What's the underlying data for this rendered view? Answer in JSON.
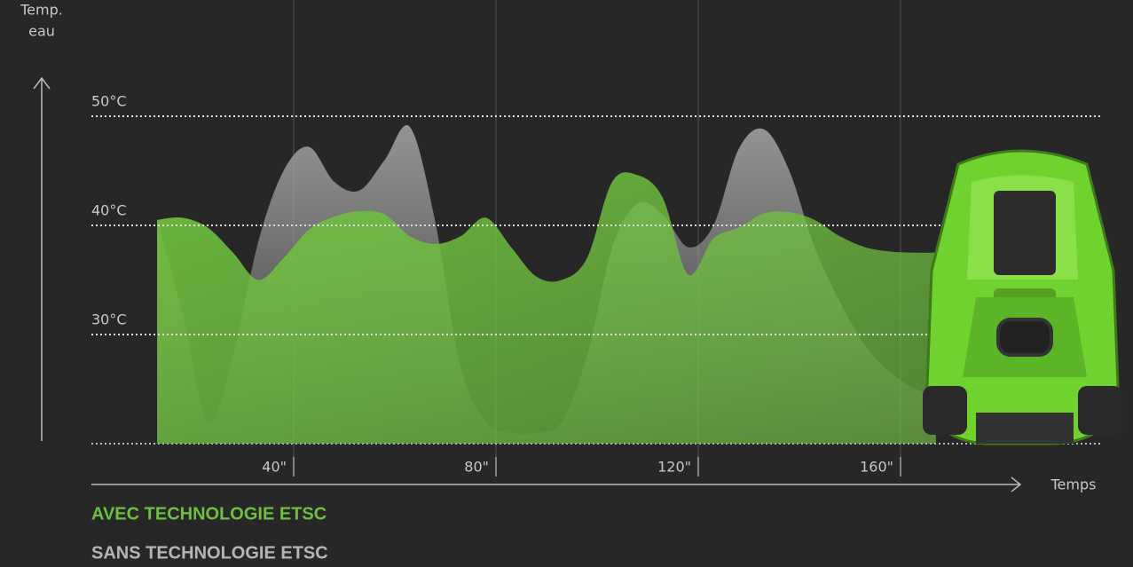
{
  "chart_data": {
    "type": "area",
    "y_label_lines": [
      "Temp.",
      "eau"
    ],
    "x_label": "Temps",
    "x": [
      13,
      18,
      23,
      28,
      33,
      38,
      43,
      48,
      53,
      58,
      63,
      68,
      73,
      78,
      83,
      88,
      93,
      98,
      103,
      108,
      113,
      118,
      123,
      128,
      133,
      138,
      143,
      148,
      153,
      158,
      163,
      167
    ],
    "series": [
      {
        "name": "SANS TECHNOLOGIE ETSC",
        "color": "#9a9a9a",
        "values": [
          40.5,
          32,
          22,
          28,
          38.5,
          45,
          47.2,
          44,
          43.2,
          46,
          49,
          40.3,
          27,
          22,
          21,
          21,
          22,
          28,
          38,
          42,
          41,
          38,
          40,
          47,
          48.8,
          45,
          38,
          33,
          29,
          26.5,
          25,
          24.5
        ]
      },
      {
        "name": "AVEC TECHNOLOGIE ETSC",
        "color": "#6fbf3f",
        "values": [
          40.5,
          40.7,
          39.8,
          37.5,
          35,
          37,
          39.6,
          40.8,
          41.3,
          41,
          39,
          38.3,
          39,
          40.7,
          38,
          35.3,
          35,
          37,
          44,
          44.6,
          42.5,
          35.5,
          38.8,
          39.8,
          41.1,
          41.2,
          40.5,
          39,
          38,
          37.6,
          37.5,
          37.5
        ]
      }
    ],
    "ylim": [
      20,
      50
    ],
    "yticks": [
      {
        "value": 30,
        "label": "30°C"
      },
      {
        "value": 40,
        "label": "40°C"
      },
      {
        "value": 50,
        "label": "50°C"
      }
    ],
    "xlim": [
      0,
      200
    ],
    "xticks": [
      {
        "value": 40,
        "label": "40\""
      },
      {
        "value": 80,
        "label": "80\""
      },
      {
        "value": 120,
        "label": "120\""
      },
      {
        "value": 160,
        "label": "160\""
      }
    ]
  }
}
